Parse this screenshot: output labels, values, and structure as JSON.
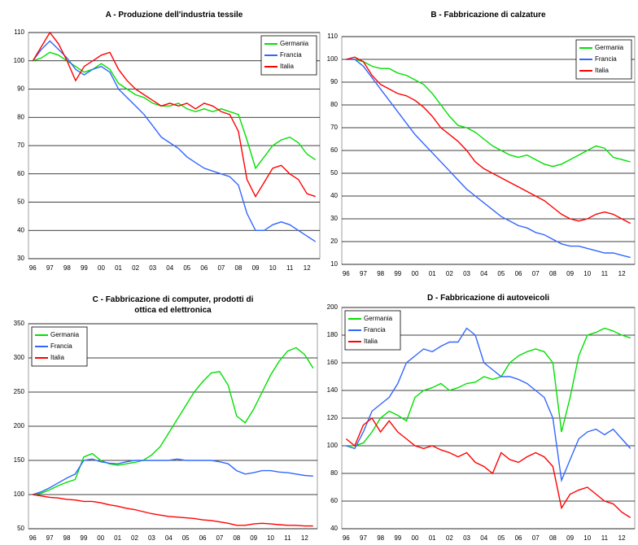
{
  "chart_data": [
    {
      "type": "line",
      "title": "A - Produzione dell'industria tessile",
      "categories": [
        "96",
        null,
        "97",
        null,
        "98",
        null,
        "99",
        null,
        "00",
        null,
        "01",
        null,
        "02",
        null,
        "03",
        null,
        "04",
        null,
        "05",
        null,
        "06",
        null,
        "07",
        null,
        "08",
        null,
        "09",
        null,
        "10",
        null,
        "11",
        null,
        "12",
        null
      ],
      "series": [
        {
          "name": "Germania",
          "color": "#00e000",
          "values": [
            100,
            101,
            103,
            102,
            100,
            98,
            96,
            97,
            99,
            97,
            92,
            90,
            88,
            87,
            85,
            84,
            84,
            85,
            83,
            82,
            83,
            82,
            83,
            82,
            81,
            72,
            62,
            66,
            70,
            72,
            73,
            71,
            67,
            65
          ]
        },
        {
          "name": "Francia",
          "color": "#3366ff",
          "values": [
            100,
            104,
            107,
            104,
            101,
            97,
            95,
            97,
            98,
            96,
            90,
            87,
            84,
            81,
            77,
            73,
            71,
            69,
            66,
            64,
            62,
            61,
            60,
            59,
            56,
            46,
            40,
            40,
            42,
            43,
            42,
            40,
            38,
            36
          ]
        },
        {
          "name": "Italia",
          "color": "#ff0000",
          "values": [
            100,
            105,
            110,
            106,
            100,
            93,
            98,
            100,
            102,
            103,
            97,
            93,
            90,
            88,
            86,
            84,
            85,
            84,
            85,
            83,
            85,
            84,
            82,
            81,
            75,
            58,
            52,
            57,
            62,
            63,
            60,
            58,
            53,
            52
          ]
        }
      ],
      "ylim": [
        30,
        110
      ],
      "yticks": [
        30,
        40,
        50,
        60,
        70,
        80,
        90,
        100,
        110
      ],
      "grid": true,
      "legend": "upper right"
    },
    {
      "type": "line",
      "title": "B - Fabbricazione di calzature",
      "categories": [
        "96",
        null,
        "97",
        null,
        "98",
        null,
        "99",
        null,
        "00",
        null,
        "01",
        null,
        "02",
        null,
        "03",
        null,
        "04",
        null,
        "05",
        null,
        "06",
        null,
        "07",
        null,
        "08",
        null,
        "09",
        null,
        "10",
        null,
        "11",
        null,
        "12",
        null
      ],
      "series": [
        {
          "name": "Germania",
          "color": "#00e000",
          "values": [
            100,
            100,
            99,
            97,
            96,
            96,
            94,
            93,
            91,
            89,
            85,
            80,
            75,
            71,
            70,
            68,
            65,
            62,
            60,
            58,
            57,
            58,
            56,
            54,
            53,
            54,
            56,
            58,
            60,
            62,
            61,
            57,
            56,
            55
          ]
        },
        {
          "name": "Francia",
          "color": "#3366ff",
          "values": [
            100,
            100,
            97,
            92,
            87,
            82,
            77,
            72,
            67,
            63,
            59,
            55,
            51,
            47,
            43,
            40,
            37,
            34,
            31,
            29,
            27,
            26,
            24,
            23,
            21,
            19,
            18,
            18,
            17,
            16,
            15,
            15,
            14,
            13
          ]
        },
        {
          "name": "Italia",
          "color": "#ff0000",
          "values": [
            100,
            101,
            99,
            93,
            89,
            87,
            85,
            84,
            82,
            79,
            75,
            70,
            67,
            64,
            60,
            55,
            52,
            50,
            48,
            46,
            44,
            42,
            40,
            38,
            35,
            32,
            30,
            29,
            30,
            32,
            33,
            32,
            30,
            28
          ]
        }
      ],
      "ylim": [
        10,
        110
      ],
      "yticks": [
        10,
        20,
        30,
        40,
        50,
        60,
        70,
        80,
        90,
        100,
        110
      ],
      "grid": true,
      "legend": "upper right"
    },
    {
      "type": "line",
      "title": "C - Fabbricazione di computer, prodotti di ottica ed elettronica",
      "categories": [
        "96",
        null,
        "97",
        null,
        "98",
        null,
        "99",
        null,
        "00",
        null,
        "01",
        null,
        "02",
        null,
        "03",
        null,
        "04",
        null,
        "05",
        null,
        "06",
        null,
        "07",
        null,
        "08",
        null,
        "09",
        null,
        "10",
        null,
        "11",
        null,
        "12",
        null
      ],
      "series": [
        {
          "name": "Germania",
          "color": "#00e000",
          "values": [
            100,
            102,
            107,
            113,
            118,
            122,
            155,
            160,
            150,
            145,
            143,
            145,
            147,
            150,
            158,
            170,
            190,
            210,
            230,
            250,
            265,
            278,
            280,
            260,
            215,
            205,
            225,
            250,
            275,
            295,
            310,
            315,
            305,
            285
          ]
        },
        {
          "name": "Francia",
          "color": "#3366ff",
          "values": [
            100,
            104,
            110,
            117,
            124,
            130,
            150,
            152,
            148,
            146,
            145,
            148,
            150,
            150,
            150,
            150,
            150,
            152,
            150,
            150,
            150,
            150,
            148,
            145,
            135,
            130,
            132,
            135,
            135,
            133,
            132,
            130,
            128,
            127
          ]
        },
        {
          "name": "Italia",
          "color": "#ff0000",
          "values": [
            100,
            98,
            96,
            95,
            93,
            92,
            90,
            90,
            88,
            85,
            83,
            80,
            78,
            75,
            72,
            70,
            68,
            67,
            66,
            65,
            63,
            62,
            60,
            58,
            55,
            55,
            57,
            58,
            57,
            56,
            55,
            55,
            54,
            54
          ]
        }
      ],
      "ylim": [
        50,
        350
      ],
      "yticks": [
        50,
        100,
        150,
        200,
        250,
        300,
        350
      ],
      "grid": true,
      "legend": "upper left"
    },
    {
      "type": "line",
      "title": "D - Fabbricazione di autoveicoli",
      "categories": [
        "96",
        null,
        "97",
        null,
        "98",
        null,
        "99",
        null,
        "00",
        null,
        "01",
        null,
        "02",
        null,
        "03",
        null,
        "04",
        null,
        "05",
        null,
        "06",
        null,
        "07",
        null,
        "08",
        null,
        "09",
        null,
        "10",
        null,
        "11",
        null,
        "12",
        null
      ],
      "series": [
        {
          "name": "Germania",
          "color": "#00e000",
          "values": [
            100,
            100,
            102,
            110,
            120,
            125,
            122,
            118,
            135,
            140,
            142,
            145,
            140,
            142,
            145,
            146,
            150,
            148,
            150,
            160,
            165,
            168,
            170,
            168,
            160,
            110,
            135,
            165,
            180,
            182,
            185,
            183,
            180,
            178
          ]
        },
        {
          "name": "Francia",
          "color": "#3366ff",
          "values": [
            100,
            98,
            110,
            125,
            130,
            135,
            145,
            160,
            165,
            170,
            168,
            172,
            175,
            175,
            185,
            180,
            160,
            155,
            150,
            150,
            148,
            145,
            140,
            135,
            120,
            75,
            90,
            105,
            110,
            112,
            108,
            112,
            105,
            98
          ]
        },
        {
          "name": "Italia",
          "color": "#ff0000",
          "values": [
            105,
            100,
            115,
            120,
            110,
            118,
            110,
            105,
            100,
            98,
            100,
            97,
            95,
            92,
            95,
            88,
            85,
            80,
            95,
            90,
            88,
            92,
            95,
            92,
            85,
            55,
            65,
            68,
            70,
            65,
            60,
            58,
            52,
            48
          ]
        }
      ],
      "ylim": [
        40,
        200
      ],
      "yticks": [
        40,
        60,
        80,
        100,
        120,
        140,
        160,
        180,
        200
      ],
      "grid": true,
      "legend": "upper left"
    }
  ]
}
